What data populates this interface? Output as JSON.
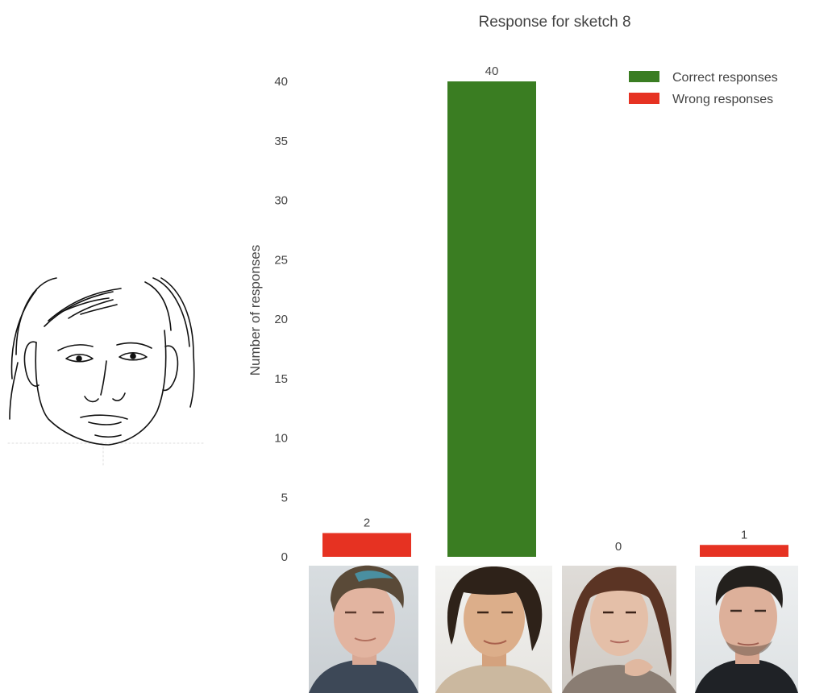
{
  "chart_data": {
    "type": "bar",
    "title": "Response for sketch 8",
    "xlabel": "",
    "ylabel": "Number of responses",
    "categories": [
      "",
      "",
      "",
      ""
    ],
    "values": [
      2,
      40,
      0,
      1
    ],
    "bar_kinds": [
      "wrong",
      "correct",
      "wrong",
      "wrong"
    ],
    "ylim": [
      0,
      42
    ],
    "yticks": [
      0,
      5,
      10,
      15,
      20,
      25,
      30,
      35,
      40
    ],
    "grid": false,
    "legend": {
      "position": "top-right",
      "entries": [
        {
          "label": "Correct responses",
          "color": "#3a7d22",
          "kind": "correct"
        },
        {
          "label": "Wrong responses",
          "color": "#e63222",
          "kind": "wrong"
        }
      ]
    }
  },
  "colors": {
    "correct": "#3a7d22",
    "wrong": "#e63222"
  },
  "images": {
    "sketch": "face-sketch",
    "candidates": [
      "candidate-photo-1",
      "candidate-photo-2",
      "candidate-photo-3",
      "candidate-photo-4"
    ]
  }
}
